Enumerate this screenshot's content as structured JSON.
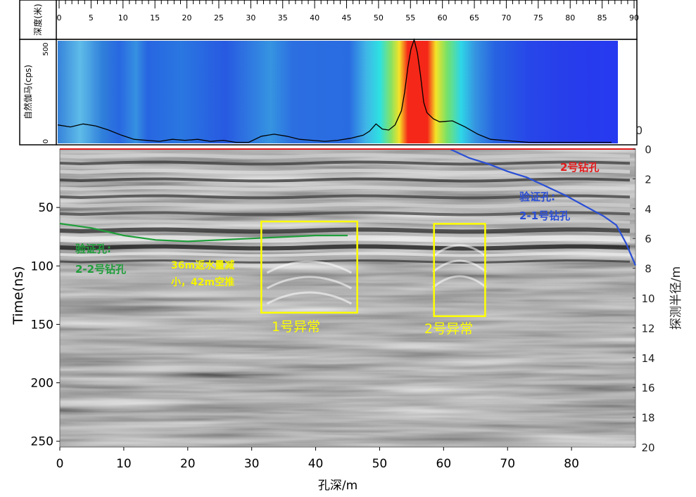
{
  "depth_header": {
    "label": "深度(米)",
    "ticks": [
      0,
      5,
      10,
      15,
      20,
      25,
      30,
      35,
      40,
      45,
      50,
      55,
      60,
      65,
      70,
      75,
      80,
      85,
      90
    ]
  },
  "gamma_panel": {
    "ylabel": "自然伽马(cps)",
    "ymax_label": "500",
    "ymin_label": "0",
    "right_label": "0"
  },
  "radar_panel": {
    "xlabel": "孔深/m",
    "ylabel": "Time(ns)",
    "y2label": "探测半径/m"
  },
  "annotations": {
    "hole_2": "2号钻孔",
    "hole_21_line1": "验证孔:",
    "hole_21_line2": "2-1号钻孔",
    "hole_22_line1": "验证孔:",
    "hole_22_line2": "2-2号钻孔",
    "note_line1": "36m返水量减",
    "note_line2": "小，42m空推",
    "anomaly_1": "1号异常",
    "anomaly_2": "2号异常"
  },
  "colors": {
    "hole_2": "#e41a1c",
    "hole_21": "#2b4fd6",
    "hole_22": "#1f9e3a",
    "note": "#f5f500",
    "anomaly_box": "#ffff00",
    "gamma_line": "#000000"
  },
  "chart_data": [
    {
      "type": "heatmap",
      "xlabel": "",
      "ylabel": "自然伽马(cps)",
      "xlim": [
        0,
        90
      ],
      "ylim": [
        0,
        500
      ],
      "gamma_curve": {
        "x": [
          0,
          2,
          4,
          6,
          8,
          10,
          12,
          14,
          16,
          18,
          20,
          22,
          24,
          26,
          28,
          30,
          32,
          34,
          36,
          38,
          40,
          42,
          44,
          46,
          48,
          49,
          50,
          51,
          52,
          53,
          54,
          54.5,
          55,
          55.5,
          56,
          56.5,
          57,
          57.5,
          58,
          59,
          60,
          62,
          64,
          66,
          68,
          70,
          72,
          74,
          76,
          78,
          80,
          82,
          84,
          86,
          87
        ],
        "y": [
          90,
          80,
          95,
          85,
          65,
          40,
          20,
          15,
          10,
          20,
          15,
          20,
          10,
          15,
          5,
          5,
          35,
          45,
          35,
          20,
          15,
          10,
          15,
          25,
          40,
          60,
          95,
          70,
          65,
          90,
          160,
          250,
          370,
          460,
          505,
          440,
          330,
          200,
          150,
          120,
          105,
          110,
          80,
          45,
          20,
          15,
          10,
          5,
          5,
          5,
          5,
          5,
          5,
          5,
          5
        ]
      }
    },
    {
      "type": "line",
      "xlabel": "孔深/m",
      "ylabel": "Time(ns)",
      "y2label": "探测半径/m",
      "xlim": [
        0,
        90
      ],
      "ylim": [
        255,
        0
      ],
      "y2lim": [
        20,
        0
      ],
      "x_ticks": [
        0,
        10,
        20,
        30,
        40,
        50,
        60,
        70,
        80
      ],
      "y_ticks": [
        50,
        100,
        150,
        200,
        250
      ],
      "y2_ticks": [
        0,
        2,
        4,
        6,
        8,
        10,
        12,
        14,
        16,
        18,
        20
      ],
      "series": [
        {
          "name": "验证孔: 2-2号钻孔",
          "axis": "y2",
          "x": [
            0,
            5,
            10,
            15,
            20,
            25,
            30,
            35,
            40,
            45
          ],
          "y": [
            5.0,
            5.3,
            5.8,
            6.1,
            6.2,
            6.1,
            6.0,
            5.9,
            5.8,
            5.8
          ]
        },
        {
          "name": "验证孔: 2-1号钻孔",
          "axis": "y2",
          "x": [
            61,
            64,
            67,
            70,
            73,
            76,
            79,
            82,
            85,
            87,
            88.5,
            90
          ],
          "y": [
            0.0,
            0.6,
            1.0,
            1.5,
            1.9,
            2.5,
            3.1,
            3.8,
            4.5,
            5.1,
            6.3,
            7.8
          ]
        },
        {
          "name": "2号钻孔",
          "axis": "y2",
          "x": [
            0,
            90
          ],
          "y": [
            0,
            0
          ]
        }
      ],
      "anomalies": [
        {
          "label": "1号异常",
          "x": [
            31.5,
            46.5
          ],
          "y": [
            62,
            140
          ]
        },
        {
          "label": "2号异常",
          "x": [
            58.5,
            66.5
          ],
          "y": [
            64,
            143
          ]
        }
      ],
      "text_annotations": [
        {
          "text": "36m返水量减 小，42m空推",
          "x": 30,
          "y": 105
        }
      ]
    }
  ]
}
